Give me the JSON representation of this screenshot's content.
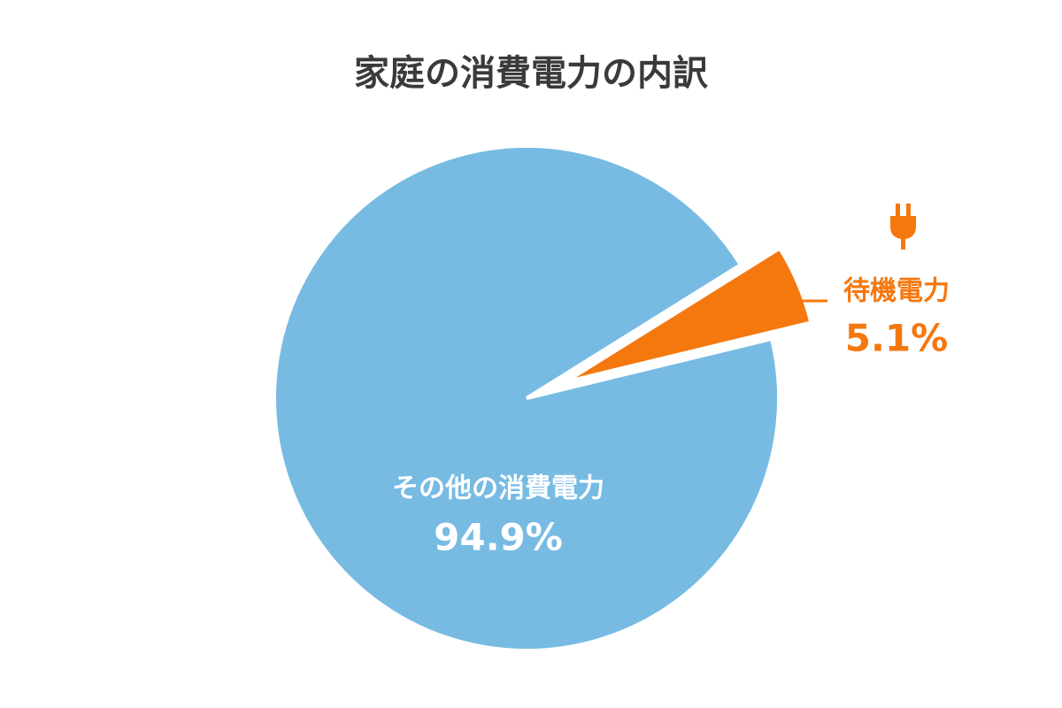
{
  "chart_data": {
    "type": "pie",
    "title": "家庭の消費電力の内訳",
    "categories": [
      "その他の消費電力",
      "待機電力"
    ],
    "values": [
      94.9,
      5.1
    ],
    "value_labels": [
      "94.9%",
      "5.1%"
    ],
    "colors": [
      "#77bbe3",
      "#f5780f"
    ]
  }
}
